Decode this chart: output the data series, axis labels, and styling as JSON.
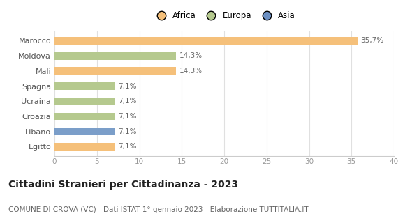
{
  "categories": [
    "Marocco",
    "Moldova",
    "Mali",
    "Spagna",
    "Ucraina",
    "Croazia",
    "Libano",
    "Egitto"
  ],
  "values": [
    35.7,
    14.3,
    14.3,
    7.1,
    7.1,
    7.1,
    7.1,
    7.1
  ],
  "labels": [
    "35,7%",
    "14,3%",
    "14,3%",
    "7,1%",
    "7,1%",
    "7,1%",
    "7,1%",
    "7,1%"
  ],
  "colors": [
    "#F5C07A",
    "#B5C98E",
    "#F5C07A",
    "#B5C98E",
    "#B5C98E",
    "#B5C98E",
    "#7B9EC9",
    "#F5C07A"
  ],
  "legend": [
    {
      "label": "Africa",
      "color": "#F5C07A"
    },
    {
      "label": "Europa",
      "color": "#B5C98E"
    },
    {
      "label": "Asia",
      "color": "#6B8FC2"
    }
  ],
  "xlim": [
    0,
    40
  ],
  "xticks": [
    0,
    5,
    10,
    15,
    20,
    25,
    30,
    35,
    40
  ],
  "title": "Cittadini Stranieri per Cittadinanza - 2023",
  "subtitle": "COMUNE DI CROVA (VC) - Dati ISTAT 1° gennaio 2023 - Elaborazione TUTTITALIA.IT",
  "title_fontsize": 10,
  "subtitle_fontsize": 7.5,
  "background_color": "#ffffff",
  "bar_height": 0.5,
  "label_fontsize": 7.5,
  "ytick_fontsize": 8,
  "xtick_fontsize": 7.5,
  "grid_color": "#e0e0e0",
  "label_color": "#666666",
  "ytick_color": "#555555",
  "xtick_color": "#999999"
}
